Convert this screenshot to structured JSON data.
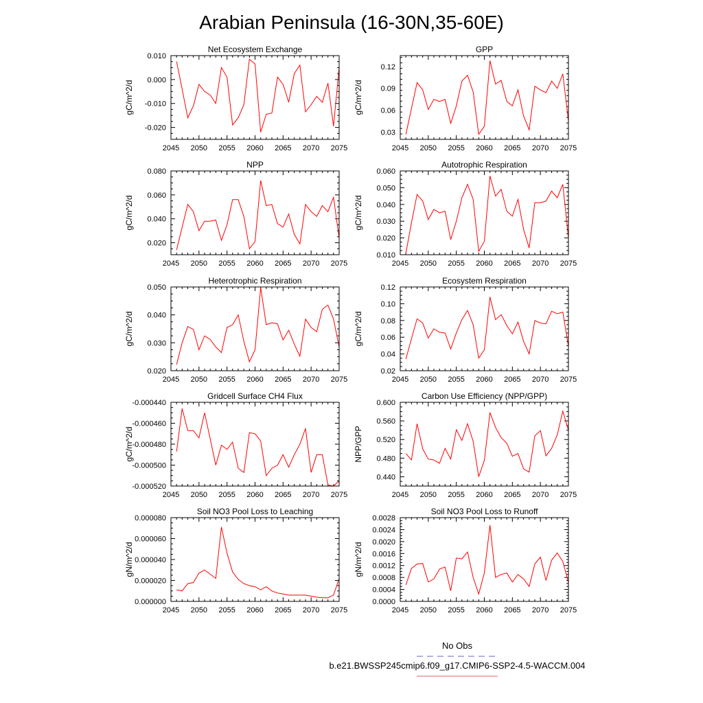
{
  "figure": {
    "title": "Arabian Peninsula (16-30N,35-60E)",
    "legend": {
      "obs_label": "No Obs",
      "obs_color": "#6666cc",
      "case_label": "b.e21.BWSSP245cmip6.f09_g17.CMIP6-SSP2-4.5-WACCM.004",
      "case_color": "#e06060"
    }
  },
  "chart_data": [
    {
      "type": "line",
      "title": "Net Ecosystem Exchange",
      "ylabel": "gC/m^2/d",
      "xlim": [
        2045,
        2075
      ],
      "ylim": [
        -0.025,
        0.01
      ],
      "xticks": [
        2045,
        2050,
        2055,
        2060,
        2065,
        2070,
        2075
      ],
      "yticks": [
        -0.02,
        -0.01,
        0.0,
        0.01
      ],
      "ytick_labels": [
        "-0.020",
        "-0.010",
        "0.000",
        "0.010"
      ],
      "grid": false,
      "series": [
        {
          "color": "#ff0000",
          "x": [
            2046,
            2047,
            2048,
            2049,
            2050,
            2051,
            2052,
            2053,
            2054,
            2055,
            2056,
            2057,
            2058,
            2059,
            2060,
            2061,
            2062,
            2063,
            2064,
            2065,
            2066,
            2067,
            2068,
            2069,
            2070,
            2071,
            2072,
            2073,
            2074,
            2075
          ],
          "y": [
            0.0075,
            -0.004,
            -0.016,
            -0.011,
            -0.002,
            -0.005,
            -0.0065,
            -0.01,
            0.005,
            0.001,
            -0.019,
            -0.016,
            -0.0105,
            0.0085,
            0.0065,
            -0.022,
            -0.0145,
            -0.014,
            0.001,
            -0.002,
            -0.0095,
            0.0025,
            0.006,
            -0.0135,
            -0.0105,
            -0.007,
            -0.0095,
            -0.0015,
            -0.0195,
            0.005
          ]
        }
      ]
    },
    {
      "type": "line",
      "title": "GPP",
      "ylabel": "gC/m^2/d",
      "xlim": [
        2045,
        2075
      ],
      "ylim": [
        0.02,
        0.135
      ],
      "xticks": [
        2045,
        2050,
        2055,
        2060,
        2065,
        2070,
        2075
      ],
      "yticks": [
        0.03,
        0.06,
        0.09,
        0.12
      ],
      "ytick_labels": [
        "0.03",
        "0.06",
        "0.09",
        "0.12"
      ],
      "grid": false,
      "series": [
        {
          "color": "#ff0000",
          "x": [
            2046,
            2047,
            2048,
            2049,
            2050,
            2051,
            2052,
            2053,
            2054,
            2055,
            2056,
            2057,
            2058,
            2059,
            2060,
            2061,
            2062,
            2063,
            2064,
            2065,
            2066,
            2067,
            2068,
            2069,
            2070,
            2071,
            2072,
            2073,
            2074,
            2075
          ],
          "y": [
            0.027,
            0.062,
            0.098,
            0.088,
            0.061,
            0.075,
            0.072,
            0.075,
            0.042,
            0.066,
            0.1,
            0.108,
            0.085,
            0.027,
            0.038,
            0.128,
            0.096,
            0.101,
            0.072,
            0.066,
            0.088,
            0.052,
            0.033,
            0.093,
            0.088,
            0.084,
            0.1,
            0.09,
            0.11,
            0.045
          ]
        }
      ]
    },
    {
      "type": "line",
      "title": "NPP",
      "ylabel": "gC/m^2/d",
      "xlim": [
        2045,
        2075
      ],
      "ylim": [
        0.01,
        0.08
      ],
      "xticks": [
        2045,
        2050,
        2055,
        2060,
        2065,
        2070,
        2075
      ],
      "yticks": [
        0.02,
        0.04,
        0.06,
        0.08
      ],
      "ytick_labels": [
        "0.020",
        "0.040",
        "0.060",
        "0.080"
      ],
      "grid": false,
      "series": [
        {
          "color": "#ff0000",
          "x": [
            2046,
            2047,
            2048,
            2049,
            2050,
            2051,
            2052,
            2053,
            2054,
            2055,
            2056,
            2057,
            2058,
            2059,
            2060,
            2061,
            2062,
            2063,
            2064,
            2065,
            2066,
            2067,
            2068,
            2069,
            2070,
            2071,
            2072,
            2073,
            2074,
            2075
          ],
          "y": [
            0.014,
            0.033,
            0.052,
            0.046,
            0.03,
            0.038,
            0.038,
            0.039,
            0.022,
            0.035,
            0.056,
            0.056,
            0.042,
            0.015,
            0.021,
            0.072,
            0.051,
            0.052,
            0.036,
            0.033,
            0.044,
            0.027,
            0.019,
            0.052,
            0.046,
            0.042,
            0.051,
            0.046,
            0.058,
            0.024
          ]
        }
      ]
    },
    {
      "type": "line",
      "title": "Autotrophic Respiration",
      "ylabel": "gC/m^2/d",
      "xlim": [
        2045,
        2075
      ],
      "ylim": [
        0.01,
        0.06
      ],
      "xticks": [
        2045,
        2050,
        2055,
        2060,
        2065,
        2070,
        2075
      ],
      "yticks": [
        0.01,
        0.02,
        0.03,
        0.04,
        0.05,
        0.06
      ],
      "ytick_labels": [
        "0.010",
        "0.020",
        "0.030",
        "0.040",
        "0.050",
        "0.060"
      ],
      "grid": false,
      "series": [
        {
          "color": "#ff0000",
          "x": [
            2046,
            2047,
            2048,
            2049,
            2050,
            2051,
            2052,
            2053,
            2054,
            2055,
            2056,
            2057,
            2058,
            2059,
            2060,
            2061,
            2062,
            2063,
            2064,
            2065,
            2066,
            2067,
            2068,
            2069,
            2070,
            2071,
            2072,
            2073,
            2074,
            2075
          ],
          "y": [
            0.011,
            0.029,
            0.046,
            0.042,
            0.031,
            0.037,
            0.035,
            0.036,
            0.019,
            0.03,
            0.044,
            0.052,
            0.043,
            0.012,
            0.018,
            0.057,
            0.045,
            0.049,
            0.036,
            0.033,
            0.043,
            0.025,
            0.014,
            0.041,
            0.041,
            0.042,
            0.048,
            0.044,
            0.052,
            0.02
          ]
        }
      ]
    },
    {
      "type": "line",
      "title": "Heterotrophic Respiration",
      "ylabel": "gC/m^2/d",
      "xlim": [
        2045,
        2075
      ],
      "ylim": [
        0.02,
        0.05
      ],
      "xticks": [
        2045,
        2050,
        2055,
        2060,
        2065,
        2070,
        2075
      ],
      "yticks": [
        0.02,
        0.03,
        0.04,
        0.05
      ],
      "ytick_labels": [
        "0.020",
        "0.030",
        "0.040",
        "0.050"
      ],
      "grid": false,
      "series": [
        {
          "color": "#ff0000",
          "x": [
            2046,
            2047,
            2048,
            2049,
            2050,
            2051,
            2052,
            2053,
            2054,
            2055,
            2056,
            2057,
            2058,
            2059,
            2060,
            2061,
            2062,
            2063,
            2064,
            2065,
            2066,
            2067,
            2068,
            2069,
            2070,
            2071,
            2072,
            2073,
            2074,
            2075
          ],
          "y": [
            0.0222,
            0.03,
            0.0358,
            0.0348,
            0.0275,
            0.0325,
            0.0312,
            0.0285,
            0.0265,
            0.0355,
            0.0365,
            0.04,
            0.0305,
            0.0232,
            0.0275,
            0.0498,
            0.0365,
            0.0372,
            0.0368,
            0.031,
            0.0345,
            0.0295,
            0.0252,
            0.0385,
            0.0355,
            0.034,
            0.042,
            0.0435,
            0.0385,
            0.0285
          ]
        }
      ]
    },
    {
      "type": "line",
      "title": "Ecosystem Respiration",
      "ylabel": "gC/m^2/d",
      "xlim": [
        2045,
        2075
      ],
      "ylim": [
        0.02,
        0.12
      ],
      "xticks": [
        2045,
        2050,
        2055,
        2060,
        2065,
        2070,
        2075
      ],
      "yticks": [
        0.02,
        0.04,
        0.06,
        0.08,
        0.1,
        0.12
      ],
      "ytick_labels": [
        "0.02",
        "0.04",
        "0.06",
        "0.08",
        "0.10",
        "0.12"
      ],
      "grid": false,
      "series": [
        {
          "color": "#ff0000",
          "x": [
            2046,
            2047,
            2048,
            2049,
            2050,
            2051,
            2052,
            2053,
            2054,
            2055,
            2056,
            2057,
            2058,
            2059,
            2060,
            2061,
            2062,
            2063,
            2064,
            2065,
            2066,
            2067,
            2068,
            2069,
            2070,
            2071,
            2072,
            2073,
            2074,
            2075
          ],
          "y": [
            0.034,
            0.058,
            0.082,
            0.077,
            0.059,
            0.07,
            0.066,
            0.065,
            0.046,
            0.065,
            0.081,
            0.092,
            0.075,
            0.035,
            0.045,
            0.108,
            0.081,
            0.087,
            0.074,
            0.064,
            0.078,
            0.055,
            0.04,
            0.08,
            0.077,
            0.076,
            0.091,
            0.088,
            0.09,
            0.049
          ]
        }
      ]
    },
    {
      "type": "line",
      "title": "Gridcell Surface CH4 Flux",
      "ylabel": "gC/m^2/d",
      "xlim": [
        2045,
        2075
      ],
      "ylim": [
        -0.00052,
        -0.00044
      ],
      "xticks": [
        2045,
        2050,
        2055,
        2060,
        2065,
        2070,
        2075
      ],
      "yticks": [
        -0.00052,
        -0.0005,
        -0.00048,
        -0.00046,
        -0.00044
      ],
      "ytick_labels": [
        "-0.000520",
        "-0.000500",
        "-0.000480",
        "-0.000460",
        "-0.000440"
      ],
      "grid": false,
      "series": [
        {
          "color": "#ff0000",
          "x": [
            2046,
            2047,
            2048,
            2049,
            2050,
            2051,
            2052,
            2053,
            2054,
            2055,
            2056,
            2057,
            2058,
            2059,
            2060,
            2061,
            2062,
            2063,
            2064,
            2065,
            2066,
            2067,
            2068,
            2069,
            2070,
            2071,
            2072,
            2073,
            2074,
            2075
          ],
          "y": [
            -0.000487,
            -0.000446,
            -0.000467,
            -0.000467,
            -0.000474,
            -0.00045,
            -0.000475,
            -0.0005,
            -0.000481,
            -0.000485,
            -0.000478,
            -0.000503,
            -0.000507,
            -0.000469,
            -0.00047,
            -0.000477,
            -0.00051,
            -0.000503,
            -0.0005,
            -0.00049,
            -0.000502,
            -0.00049,
            -0.00048,
            -0.000465,
            -0.000507,
            -0.00049,
            -0.00049,
            -0.000519,
            -0.00052,
            -0.000515
          ]
        }
      ]
    },
    {
      "type": "line",
      "title": "Carbon Use Efficiency (NPP/GPP)",
      "ylabel": "NPP/GPP",
      "xlim": [
        2045,
        2075
      ],
      "ylim": [
        0.42,
        0.6
      ],
      "xticks": [
        2045,
        2050,
        2055,
        2060,
        2065,
        2070,
        2075
      ],
      "yticks": [
        0.44,
        0.48,
        0.52,
        0.56,
        0.6
      ],
      "ytick_labels": [
        "0.440",
        "0.480",
        "0.520",
        "0.560",
        "0.600"
      ],
      "grid": false,
      "series": [
        {
          "color": "#ff0000",
          "x": [
            2046,
            2047,
            2048,
            2049,
            2050,
            2051,
            2052,
            2053,
            2054,
            2055,
            2056,
            2057,
            2058,
            2059,
            2060,
            2061,
            2062,
            2063,
            2064,
            2065,
            2066,
            2067,
            2068,
            2069,
            2070,
            2071,
            2072,
            2073,
            2074,
            2075
          ],
          "y": [
            0.49,
            0.476,
            0.554,
            0.5,
            0.478,
            0.476,
            0.469,
            0.501,
            0.478,
            0.541,
            0.518,
            0.554,
            0.516,
            0.44,
            0.475,
            0.578,
            0.546,
            0.524,
            0.512,
            0.484,
            0.49,
            0.457,
            0.45,
            0.528,
            0.539,
            0.485,
            0.501,
            0.53,
            0.581,
            0.54
          ]
        }
      ]
    },
    {
      "type": "line",
      "title": "Soil NO3 Pool Loss to Leaching",
      "ylabel": "gN/m^2/d",
      "xlim": [
        2045,
        2075
      ],
      "ylim": [
        0,
        8e-05
      ],
      "xticks": [
        2045,
        2050,
        2055,
        2060,
        2065,
        2070,
        2075
      ],
      "yticks": [
        0,
        2e-05,
        4e-05,
        6e-05,
        8e-05
      ],
      "ytick_labels": [
        "0.000000",
        "0.000020",
        "0.000040",
        "0.000060",
        "0.000080"
      ],
      "grid": false,
      "series": [
        {
          "color": "#ff0000",
          "x": [
            2046,
            2047,
            2048,
            2049,
            2050,
            2051,
            2052,
            2053,
            2054,
            2055,
            2056,
            2057,
            2058,
            2059,
            2060,
            2061,
            2062,
            2063,
            2064,
            2065,
            2066,
            2067,
            2068,
            2069,
            2070,
            2071,
            2072,
            2073,
            2074,
            2075
          ],
          "y": [
            1.1e-05,
            1e-05,
            1.7e-05,
            1.8e-05,
            2.7e-05,
            3e-05,
            2.6e-05,
            2.2e-05,
            7.1e-05,
            4.6e-05,
            2.8e-05,
            2.1e-05,
            1.7e-05,
            1.5e-05,
            1.4e-05,
            1.1e-05,
            1.4e-05,
            1e-05,
            8e-06,
            7e-06,
            6e-06,
            6e-06,
            6e-06,
            6e-06,
            5e-06,
            4e-06,
            3.5e-06,
            3.5e-06,
            6e-06,
            2.2e-05
          ]
        }
      ]
    },
    {
      "type": "line",
      "title": "Soil NO3 Pool Loss to Runoff",
      "ylabel": "gN/m^2/d",
      "xlim": [
        2045,
        2075
      ],
      "ylim": [
        0,
        0.0028
      ],
      "xticks": [
        2045,
        2050,
        2055,
        2060,
        2065,
        2070,
        2075
      ],
      "yticks": [
        0,
        0.0004,
        0.0008,
        0.0012,
        0.0016,
        0.002,
        0.0024,
        0.0028
      ],
      "ytick_labels": [
        "0.0000",
        "0.0004",
        "0.0008",
        "0.0012",
        "0.0016",
        "0.0020",
        "0.0024",
        "0.0028"
      ],
      "grid": false,
      "series": [
        {
          "color": "#ff0000",
          "x": [
            2046,
            2047,
            2048,
            2049,
            2050,
            2051,
            2052,
            2053,
            2054,
            2055,
            2056,
            2057,
            2058,
            2059,
            2060,
            2061,
            2062,
            2063,
            2064,
            2065,
            2066,
            2067,
            2068,
            2069,
            2070,
            2071,
            2072,
            2073,
            2074,
            2075
          ],
          "y": [
            0.00055,
            0.0011,
            0.00125,
            0.00127,
            0.00065,
            0.00075,
            0.00108,
            0.00115,
            0.00035,
            0.00145,
            0.00142,
            0.00165,
            0.0008,
            0.00025,
            0.00095,
            0.00255,
            0.0008,
            0.0009,
            0.00095,
            0.00065,
            0.0009,
            0.00075,
            0.0005,
            0.00125,
            0.00148,
            0.0007,
            0.00138,
            0.00162,
            0.00133,
            0.00063
          ]
        }
      ]
    }
  ]
}
